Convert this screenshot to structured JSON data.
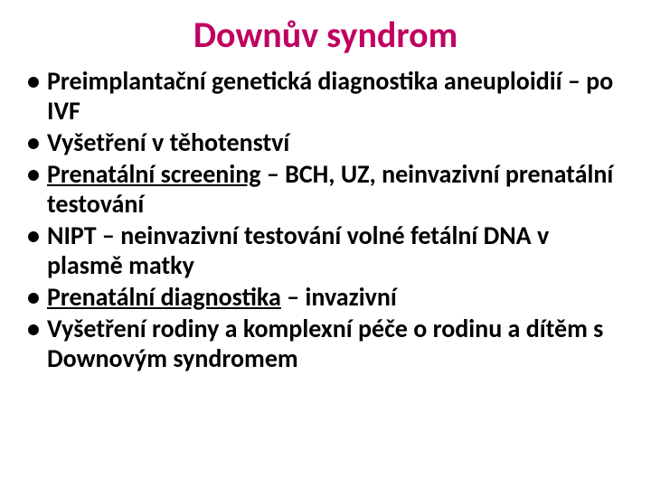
{
  "title": {
    "text": "Downův syndrom",
    "color": "#c00060",
    "fontSize": 40
  },
  "body": {
    "fontSize": 28,
    "color": "#000000",
    "items": [
      {
        "parts": [
          {
            "t": "Preimplantační genetická diagnostika aneuploidií – po IVF"
          }
        ]
      },
      {
        "parts": [
          {
            "t": "Vyšetření v těhotenství"
          }
        ]
      },
      {
        "parts": [
          {
            "t": "Prenatální screening",
            "u": true
          },
          {
            "t": " – BCH, UZ, neinvazivní prenatální testování"
          }
        ]
      },
      {
        "parts": [
          {
            "t": "NIPT – neinvazivní testování volné fetální DNA v plasmě matky"
          }
        ]
      },
      {
        "parts": [
          {
            "t": "Prenatální diagnostika",
            "u": true
          },
          {
            "t": " – invazivní"
          }
        ]
      },
      {
        "parts": [
          {
            "t": "Vyšetření rodiny a komplexní péče o rodinu a dítěm s Downovým syndromem"
          }
        ]
      }
    ]
  }
}
